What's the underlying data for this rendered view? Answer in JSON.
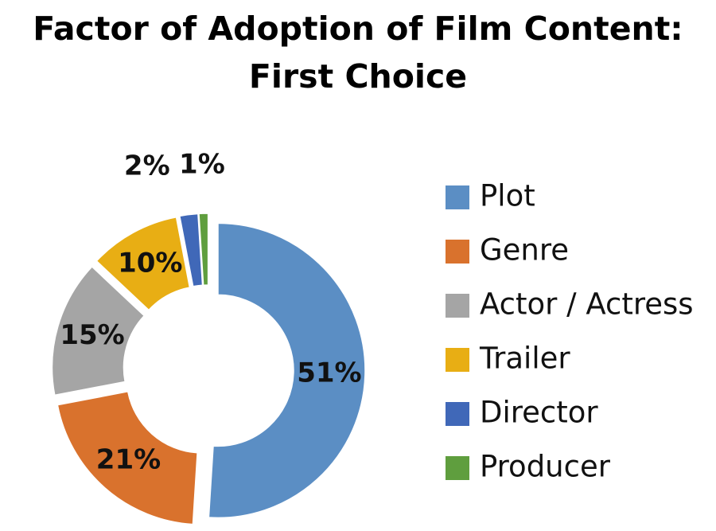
{
  "chart_data": {
    "type": "donut",
    "title": "Factor of Adoption of Film Content: First Choice",
    "categories": [
      "Plot",
      "Genre",
      "Actor / Actress",
      "Trailer",
      "Director",
      "Producer"
    ],
    "values": [
      51,
      21,
      15,
      10,
      2,
      1
    ],
    "value_labels": [
      "51%",
      "21%",
      "15%",
      "10%",
      "2%",
      "1%"
    ],
    "colors": [
      "#5b8ec4",
      "#d9722d",
      "#a5a5a5",
      "#e8ae14",
      "#4068b8",
      "#5f9e3e"
    ],
    "legend": "right"
  }
}
